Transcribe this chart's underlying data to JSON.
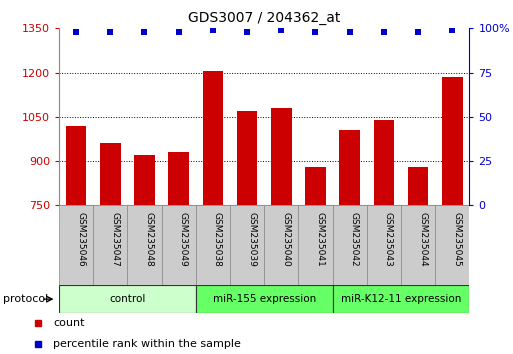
{
  "title": "GDS3007 / 204362_at",
  "categories": [
    "GSM235046",
    "GSM235047",
    "GSM235048",
    "GSM235049",
    "GSM235038",
    "GSM235039",
    "GSM235040",
    "GSM235041",
    "GSM235042",
    "GSM235043",
    "GSM235044",
    "GSM235045"
  ],
  "bar_values": [
    1020,
    960,
    920,
    930,
    1205,
    1070,
    1080,
    880,
    1005,
    1040,
    880,
    1185
  ],
  "percentile_values": [
    98,
    98,
    98,
    98,
    99,
    98,
    99,
    98,
    98,
    98,
    98,
    99
  ],
  "bar_color": "#cc0000",
  "dot_color": "#0000cc",
  "ylim_left": [
    750,
    1350
  ],
  "ylim_right": [
    0,
    100
  ],
  "yticks_left": [
    750,
    900,
    1050,
    1200,
    1350
  ],
  "yticks_right": [
    0,
    25,
    50,
    75,
    100
  ],
  "right_tick_labels": [
    "0",
    "25",
    "50",
    "75",
    "100%"
  ],
  "grid_values": [
    900,
    1050,
    1200
  ],
  "groups": [
    {
      "label": "control",
      "start": 0,
      "end": 4,
      "color": "#ccffcc"
    },
    {
      "label": "miR-155 expression",
      "start": 4,
      "end": 8,
      "color": "#66ff66"
    },
    {
      "label": "miR-K12-11 expression",
      "start": 8,
      "end": 12,
      "color": "#66ff66"
    }
  ],
  "legend_items": [
    {
      "label": "count",
      "color": "#cc0000"
    },
    {
      "label": "percentile rank within the sample",
      "color": "#0000cc"
    }
  ],
  "protocol_label": "protocol",
  "plot_bg_color": "#ffffff",
  "bar_width": 0.6,
  "label_box_color": "#cccccc",
  "label_box_edge": "#888888",
  "fig_width": 5.13,
  "fig_height": 3.54,
  "dpi": 100
}
